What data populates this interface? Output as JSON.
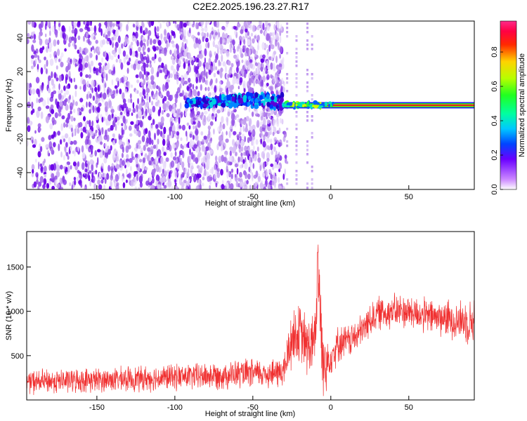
{
  "title": "C2E2.2025.196.23.27.R17",
  "colors": {
    "frame": "#000000",
    "snr_line": "#f03030",
    "doppler_light": "#c9a6f2",
    "doppler_dark": "#6a00e8",
    "echo_core": "#e02020",
    "echo_band": "#22cc33",
    "background": "#ffffff"
  },
  "chart_data": [
    {
      "type": "heatmap",
      "title": "C2E2.2025.196.23.27.R17",
      "xlabel": "Height of straight line (km)",
      "ylabel": "Frequency (Hz)",
      "xlim": [
        -195,
        92
      ],
      "ylim": [
        -50,
        50
      ],
      "xticks": [
        -150,
        -100,
        -50,
        0,
        50
      ],
      "yticks": [
        -40,
        -20,
        0,
        20,
        40
      ],
      "grid": false,
      "colorbar": {
        "label": "Normalized spectral amplitude",
        "range": [
          0,
          0.98
        ],
        "ticks": [
          0.0,
          0.2,
          0.4,
          0.6,
          0.8
        ],
        "tick_labels": [
          "0.0",
          "0.2",
          "0.4",
          "0.6",
          "0.8"
        ],
        "colormap": "white-violet-blue-cyan-green-yellow-red-magenta"
      },
      "features": [
        {
          "name": "noise",
          "x_range": [
            -195,
            -30
          ],
          "freq_range": [
            -50,
            50
          ],
          "amplitude": 0.1
        },
        {
          "name": "echo onset",
          "x_range": [
            -93,
            -30
          ],
          "freq_center": 3,
          "amplitude": 0.25
        },
        {
          "name": "echo trace",
          "x_range": [
            -30,
            92
          ],
          "freq_center": 0,
          "amplitude": 0.85
        }
      ]
    },
    {
      "type": "line",
      "xlabel": "Height of straight line (km)",
      "ylabel": "SNR (10 * v/v)",
      "xlim": [
        -195,
        92
      ],
      "ylim": [
        0,
        1900
      ],
      "xticks": [
        -150,
        -100,
        -50,
        0,
        50
      ],
      "yticks": [
        500,
        1000,
        1500
      ],
      "grid": false,
      "series": [
        {
          "x": [
            -195,
            -180,
            -160,
            -140,
            -120,
            -100,
            -80,
            -60,
            -45,
            -35,
            -30,
            -25,
            -20,
            -15,
            -10,
            -8,
            -5,
            0,
            5,
            10,
            15,
            20,
            25,
            30,
            40,
            50,
            60,
            70,
            80,
            92
          ],
          "y": [
            200,
            210,
            220,
            230,
            240,
            260,
            270,
            290,
            300,
            300,
            330,
            700,
            750,
            600,
            650,
            1500,
            350,
            500,
            640,
            660,
            700,
            780,
            900,
            980,
            1000,
            1000,
            950,
            930,
            900,
            880
          ],
          "spread": [
            160,
            160,
            160,
            160,
            170,
            170,
            180,
            190,
            190,
            200,
            230,
            420,
            380,
            420,
            400,
            400,
            380,
            260,
            240,
            220,
            220,
            220,
            220,
            220,
            230,
            230,
            230,
            240,
            260,
            300
          ]
        }
      ]
    }
  ]
}
